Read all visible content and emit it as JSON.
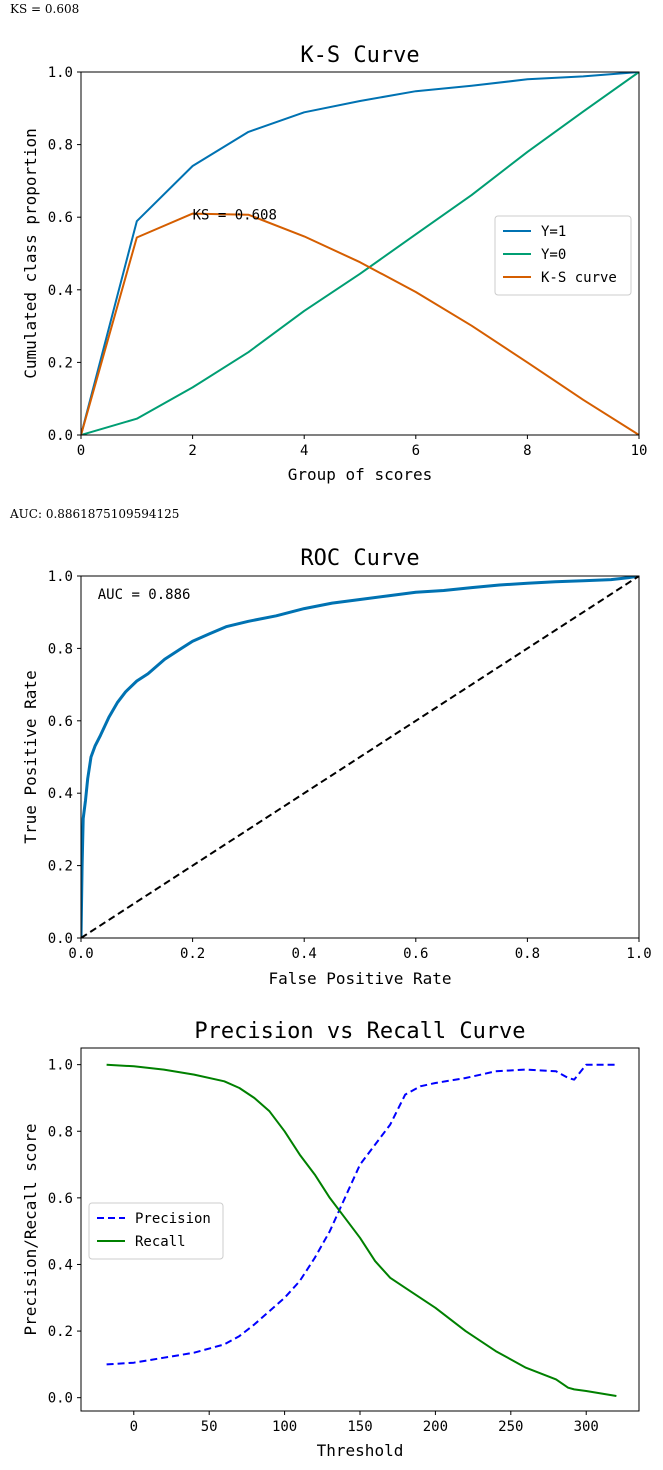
{
  "printouts": {
    "ks_text": "KS = 0.608",
    "auc_text": "AUC: 0.8861875109594125"
  },
  "chart_data": [
    {
      "type": "line",
      "title": "K-S Curve",
      "xlabel": "Group of scores",
      "ylabel": "Cumulated class proportion",
      "xlim": [
        0,
        10
      ],
      "ylim": [
        0,
        1
      ],
      "xticks": [
        0,
        2,
        4,
        6,
        8,
        10
      ],
      "yticks": [
        0.0,
        0.2,
        0.4,
        0.6,
        0.8,
        1.0
      ],
      "grid": false,
      "legend_position": "center-right",
      "x": [
        0,
        1,
        2,
        3,
        4,
        5,
        6,
        7,
        8,
        9,
        10
      ],
      "series": [
        {
          "name": "Y=1",
          "color": "#0072B2",
          "values": [
            0,
            0.589,
            0.741,
            0.835,
            0.889,
            0.92,
            0.947,
            0.962,
            0.98,
            0.988,
            1.0
          ]
        },
        {
          "name": "Y=0",
          "color": "#009E73",
          "values": [
            0,
            0.045,
            0.131,
            0.228,
            0.342,
            0.444,
            0.553,
            0.661,
            0.78,
            0.891,
            1.0
          ]
        },
        {
          "name": "K-S curve",
          "color": "#D55E00",
          "values": [
            0,
            0.544,
            0.61,
            0.607,
            0.547,
            0.476,
            0.394,
            0.301,
            0.2,
            0.097,
            0.0
          ]
        }
      ],
      "annotations": [
        {
          "text": "KS = 0.608",
          "x": 2,
          "y": 0.608
        }
      ]
    },
    {
      "type": "line",
      "title": "ROC Curve",
      "xlabel": "False Positive Rate",
      "ylabel": "True Positive Rate",
      "xlim": [
        0,
        1
      ],
      "ylim": [
        0,
        1
      ],
      "xticks": [
        0.0,
        0.2,
        0.4,
        0.6,
        0.8,
        1.0
      ],
      "yticks": [
        0.0,
        0.2,
        0.4,
        0.6,
        0.8,
        1.0
      ],
      "grid": false,
      "annotations": [
        {
          "text": "AUC = 0.886",
          "x": 0.03,
          "y": 0.95
        }
      ],
      "series": [
        {
          "color": "#0072B2",
          "style": "solid",
          "x": [
            0,
            0.002,
            0.004,
            0.008,
            0.012,
            0.018,
            0.025,
            0.035,
            0.05,
            0.065,
            0.08,
            0.1,
            0.12,
            0.15,
            0.18,
            0.2,
            0.23,
            0.26,
            0.3,
            0.35,
            0.4,
            0.45,
            0.5,
            0.55,
            0.6,
            0.65,
            0.7,
            0.75,
            0.8,
            0.85,
            0.9,
            0.95,
            0.98,
            1.0
          ],
          "values": [
            0,
            0.2,
            0.33,
            0.38,
            0.44,
            0.5,
            0.53,
            0.56,
            0.61,
            0.65,
            0.68,
            0.71,
            0.73,
            0.77,
            0.8,
            0.82,
            0.84,
            0.86,
            0.875,
            0.89,
            0.91,
            0.925,
            0.935,
            0.945,
            0.955,
            0.96,
            0.968,
            0.975,
            0.98,
            0.984,
            0.987,
            0.99,
            0.995,
            1.0
          ]
        },
        {
          "color": "#000000",
          "style": "dashed",
          "x": [
            0,
            1
          ],
          "values": [
            0,
            1
          ]
        }
      ]
    },
    {
      "type": "line",
      "title": "Precision vs Recall Curve",
      "xlabel": "Threshold",
      "ylabel": "Precision/Recall score",
      "xlim": [
        -35,
        335
      ],
      "ylim": [
        -0.04,
        1.05
      ],
      "xticks": [
        0,
        50,
        100,
        150,
        200,
        250,
        300
      ],
      "yticks": [
        0.0,
        0.2,
        0.4,
        0.6,
        0.8,
        1.0
      ],
      "grid": false,
      "legend_position": "center-left",
      "x": [
        -18,
        0,
        20,
        40,
        60,
        70,
        80,
        90,
        100,
        110,
        120,
        130,
        140,
        150,
        160,
        170,
        180,
        190,
        200,
        220,
        240,
        260,
        280,
        288,
        292,
        300,
        320
      ],
      "series": [
        {
          "name": "Precision",
          "color": "#0000FF",
          "style": "dashed",
          "values": [
            0.1,
            0.105,
            0.12,
            0.135,
            0.16,
            0.185,
            0.22,
            0.26,
            0.3,
            0.35,
            0.42,
            0.5,
            0.6,
            0.7,
            0.76,
            0.82,
            0.91,
            0.935,
            0.945,
            0.96,
            0.98,
            0.985,
            0.98,
            0.96,
            0.955,
            1.0,
            1.0
          ]
        },
        {
          "name": "Recall",
          "color": "#008000",
          "style": "solid",
          "values": [
            1.0,
            0.995,
            0.985,
            0.97,
            0.95,
            0.93,
            0.9,
            0.86,
            0.8,
            0.73,
            0.67,
            0.6,
            0.54,
            0.48,
            0.41,
            0.36,
            0.33,
            0.3,
            0.27,
            0.2,
            0.14,
            0.09,
            0.055,
            0.03,
            0.025,
            0.02,
            0.005
          ]
        }
      ]
    }
  ]
}
